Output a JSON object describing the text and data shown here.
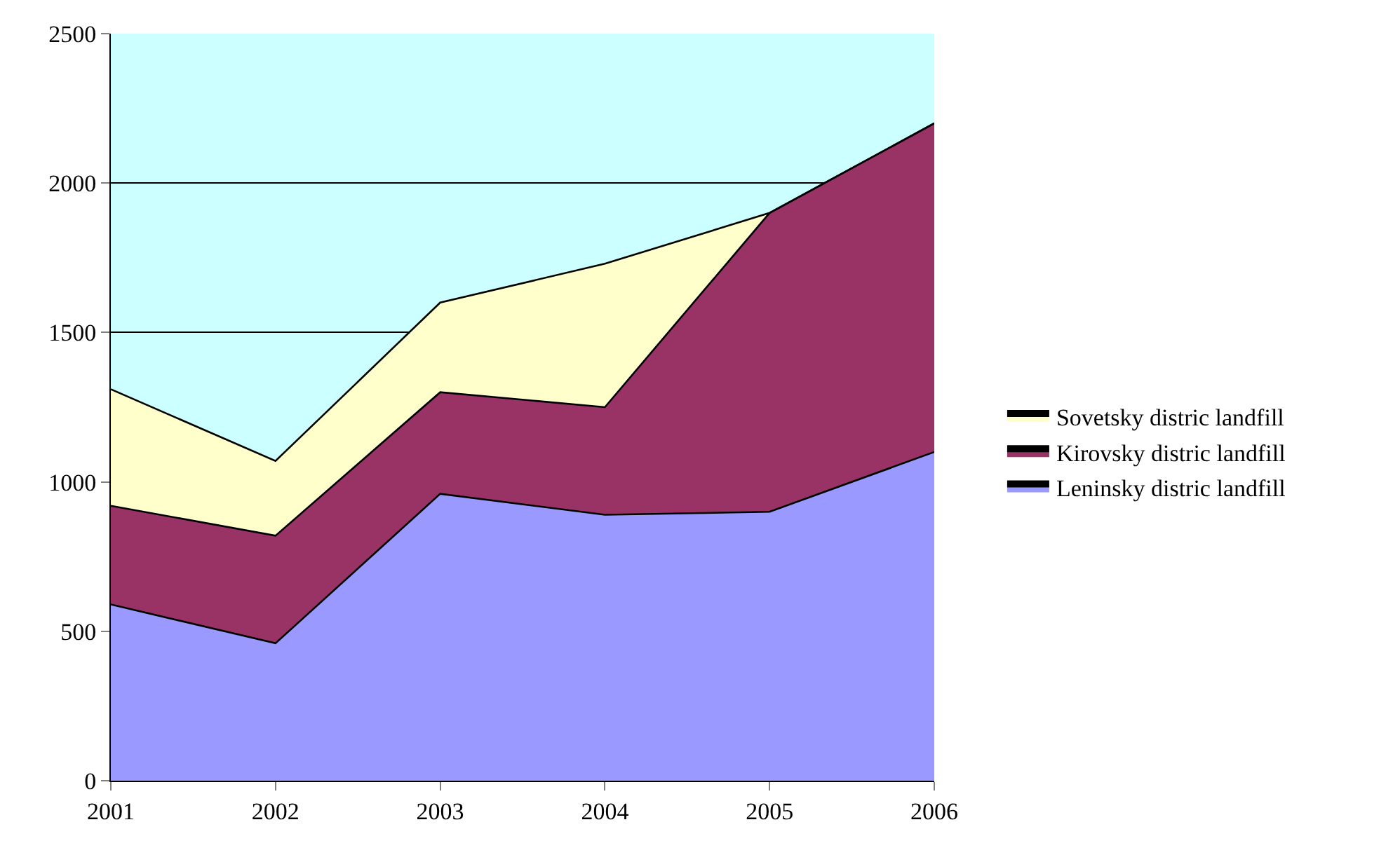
{
  "chart_data": {
    "type": "area",
    "stacked": true,
    "x": [
      2001,
      2002,
      2003,
      2004,
      2005,
      2006
    ],
    "series": [
      {
        "name": "Leninsky distric landfill",
        "color": "#9999ff",
        "values": [
          590,
          460,
          960,
          890,
          900,
          1100
        ]
      },
      {
        "name": "Kirovsky distric landfill",
        "color": "#993366",
        "values": [
          330,
          360,
          340,
          360,
          1000,
          1100
        ]
      },
      {
        "name": "Sovetsky distric landfill",
        "color": "#ffffcc",
        "values": [
          390,
          250,
          300,
          480,
          0,
          0
        ]
      }
    ],
    "xlim": [
      2001,
      2006
    ],
    "xticks": [
      2001,
      2002,
      2003,
      2004,
      2005,
      2006
    ],
    "ylim": [
      0,
      2500
    ],
    "yticks": [
      0,
      500,
      1000,
      1500,
      2000,
      2500
    ],
    "grid": "y",
    "legend": "right",
    "marker": "none",
    "line_style": "solid"
  }
}
